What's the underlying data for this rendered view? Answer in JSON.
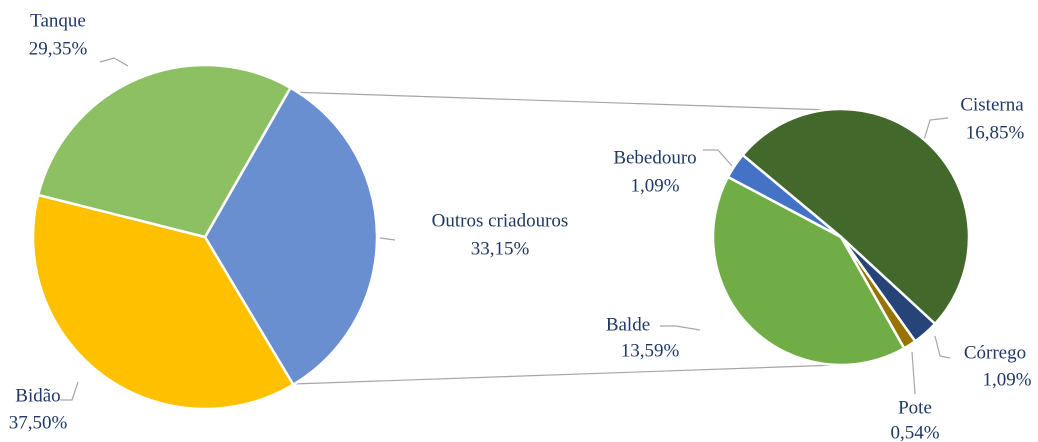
{
  "chart_data": [
    {
      "type": "pie",
      "categories": [
        "Outros criadouros",
        "Bidão",
        "Tanque"
      ],
      "values": [
        33.15,
        37.5,
        29.35
      ],
      "value_labels": [
        "33,15%",
        "37,50%",
        "29,35%"
      ],
      "colors": [
        "#6a8fd1",
        "#ffc000",
        "#8dc063"
      ]
    },
    {
      "type": "pie",
      "categories": [
        "Cisterna",
        "Córrego",
        "Pote",
        "Balde",
        "Bebedouro"
      ],
      "values": [
        16.85,
        1.09,
        0.54,
        13.59,
        1.09
      ],
      "value_labels": [
        "16,85%",
        "1,09%",
        "0,54%",
        "13,59%",
        "1,09%"
      ],
      "colors": [
        "#43682b",
        "#264478",
        "#997300",
        "#70ad47",
        "#4472c4"
      ]
    }
  ]
}
